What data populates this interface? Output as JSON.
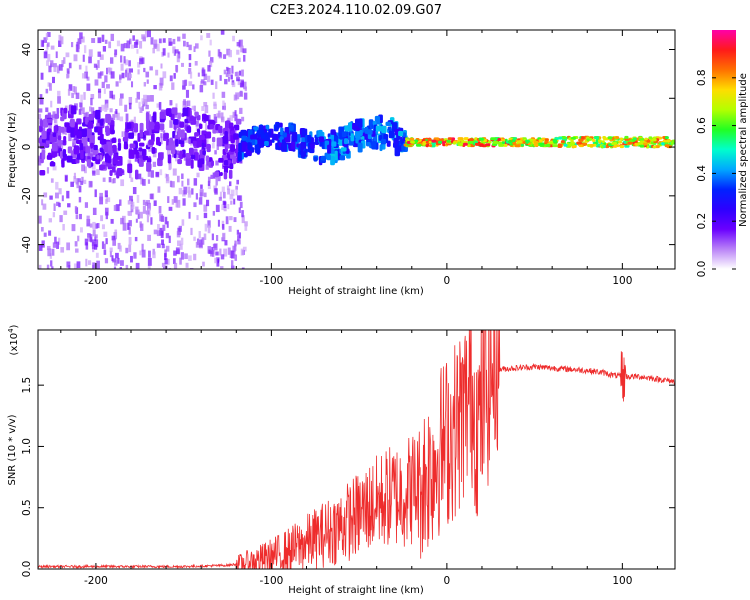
{
  "chart_data": [
    {
      "type": "heatmap",
      "title": "C2E3.2024.110.02.09.G07",
      "xlabel": "Height of straight line (km)",
      "ylabel": "Frequency (Hz)",
      "xlim": [
        -233,
        130
      ],
      "ylim": [
        -50,
        48
      ],
      "xticks": [
        -200,
        -100,
        0,
        100
      ],
      "xtick_labels": [
        "-200",
        "-100",
        "0",
        "100"
      ],
      "yticks": [
        -40,
        -20,
        0,
        20,
        40
      ],
      "ytick_labels": [
        "-40",
        "-20",
        "0",
        "20",
        "40"
      ],
      "colorbar": {
        "label": "Normalized spectral amplitude",
        "range": [
          0,
          1
        ],
        "ticks": [
          0.0,
          0.2,
          0.4,
          0.6,
          0.8
        ],
        "tick_labels": [
          "0.0",
          "0.2",
          "0.4",
          "0.6",
          "0.8"
        ],
        "colors": [
          "#ffffff",
          "#b982f7",
          "#6a00ff",
          "#2d00ff",
          "#0022ff",
          "#00a8ff",
          "#00ffcc",
          "#22ff22",
          "#b4ff00",
          "#ffdd00",
          "#ff7000",
          "#ff1a1a",
          "#ff00a8"
        ]
      },
      "bands": [
        {
          "x": [
            -233,
            -120
          ],
          "center": 2,
          "width": 22,
          "amp": 0.2
        },
        {
          "x": [
            -120,
            -75
          ],
          "center": 2,
          "width": 10,
          "amp": 0.4
        },
        {
          "x": [
            -75,
            -25
          ],
          "center": 3,
          "width": 12,
          "amp": 0.45
        },
        {
          "x": [
            -25,
            60
          ],
          "center": 2,
          "width": 3,
          "amp": 0.95
        },
        {
          "x": [
            60,
            130
          ],
          "center": 2,
          "width": 4,
          "amp": 0.9
        }
      ]
    },
    {
      "type": "line",
      "xlabel": "Height of straight line (km)",
      "ylabel": "SNR (10 * v/v)",
      "scale_label": "(x10",
      "scale_exponent": "4",
      "scale_suffix": ")",
      "xlim": [
        -233,
        130
      ],
      "ylim": [
        0,
        1.95
      ],
      "xticks": [
        -200,
        -100,
        0,
        100
      ],
      "xtick_labels": [
        "-200",
        "-100",
        "0",
        "100"
      ],
      "yticks": [
        0.0,
        0.5,
        1.0,
        1.5
      ],
      "ytick_labels": [
        "0.0",
        "0.5",
        "1.0",
        "1.5"
      ],
      "series": [
        {
          "name": "SNR",
          "color": "#ee2c2c",
          "x": [
            -233,
            -200,
            -150,
            -125,
            -115,
            -105,
            -95,
            -85,
            -75,
            -65,
            -55,
            -45,
            -35,
            -25,
            -15,
            -10,
            -5,
            0,
            5,
            10,
            14,
            18,
            22,
            25,
            30,
            40,
            50,
            60,
            70,
            80,
            90,
            95,
            100,
            110,
            120,
            130
          ],
          "y": [
            0.02,
            0.02,
            0.02,
            0.03,
            0.05,
            0.08,
            0.12,
            0.18,
            0.25,
            0.32,
            0.4,
            0.5,
            0.58,
            0.62,
            0.7,
            0.8,
            0.95,
            1.05,
            1.15,
            1.3,
            1.45,
            1.15,
            1.45,
            1.58,
            1.63,
            1.64,
            1.65,
            1.64,
            1.63,
            1.62,
            1.6,
            1.58,
            1.57,
            1.57,
            1.55,
            1.53
          ]
        }
      ]
    }
  ]
}
